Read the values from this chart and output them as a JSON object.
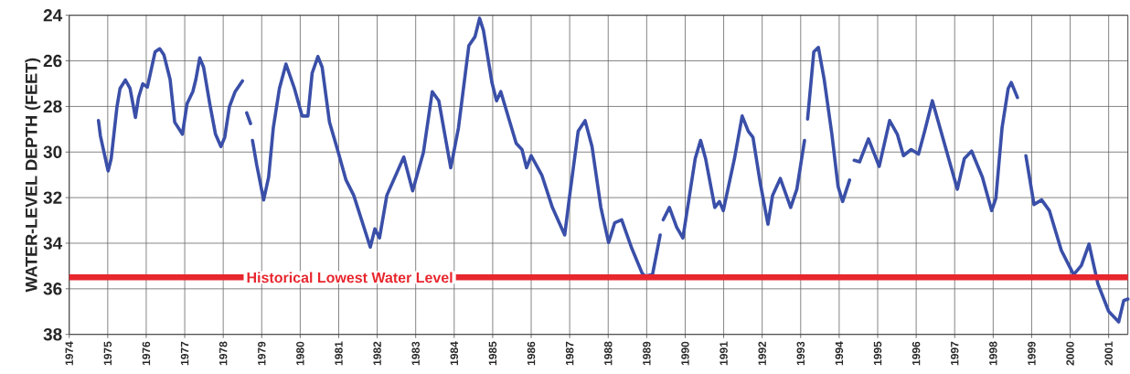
{
  "chart_data": {
    "type": "line",
    "ylabel": "WATER-LEVEL DEPTH (FEET)",
    "xlim": [
      1974,
      2001.5
    ],
    "ylim": [
      38,
      24
    ],
    "xticks": [
      1974,
      1975,
      1976,
      1977,
      1978,
      1979,
      1980,
      1981,
      1982,
      1983,
      1984,
      1985,
      1986,
      1987,
      1988,
      1989,
      1990,
      1991,
      1992,
      1993,
      1994,
      1995,
      1996,
      1997,
      1998,
      1999,
      2000,
      2001
    ],
    "yticks": [
      24,
      26,
      28,
      30,
      32,
      34,
      36,
      38
    ],
    "grid": true,
    "marker": "none",
    "line_style": "solid",
    "ref_lines": [
      {
        "axis": "y",
        "value": 35.5,
        "label": "Historical Lowest Water Level",
        "color": "#e8262e"
      }
    ],
    "series": [
      {
        "color": "#3a4fa8",
        "x": [
          1974.76,
          1974.81,
          1975.01,
          1975.09,
          1975.24,
          1975.32,
          1975.46,
          1975.58,
          1975.72,
          1975.8,
          1975.91,
          1976.03,
          1976.23,
          1976.35,
          1976.46,
          1976.62,
          1976.74,
          1976.94,
          1977.06,
          1977.21,
          1977.29,
          1977.39,
          1977.49,
          1977.65,
          1977.8,
          1977.94,
          1978.04,
          1978.16,
          1978.31,
          1978.5,
          1978.55,
          1978.61,
          1978.71,
          1978.735,
          1978.76,
          1978.87,
          1979.05,
          1979.18,
          1979.3,
          1979.46,
          1979.63,
          1979.85,
          1980.05,
          1980.2,
          1980.31,
          1980.46,
          1980.57,
          1980.76,
          1980.99,
          1981.19,
          1981.39,
          1981.82,
          1981.94,
          1982.06,
          1982.25,
          1982.69,
          1982.92,
          1983.2,
          1983.43,
          1983.6,
          1983.91,
          1984.11,
          1984.38,
          1984.54,
          1984.66,
          1984.76,
          1984.98,
          1985.1,
          1985.21,
          1985.61,
          1985.76,
          1985.88,
          1986.0,
          1986.28,
          1986.55,
          1986.87,
          1986.99,
          1987.22,
          1987.4,
          1987.58,
          1987.81,
          1988.01,
          1988.17,
          1988.35,
          1988.6,
          1988.88,
          1988.96,
          1989.15,
          1989.35,
          1989.39,
          1989.43,
          1989.59,
          1989.78,
          1989.94,
          1990.26,
          1990.4,
          1990.53,
          1990.77,
          1990.89,
          1990.99,
          1991.28,
          1991.48,
          1991.64,
          1991.76,
          1991.95,
          1992.15,
          1992.27,
          1992.47,
          1992.74,
          1992.9,
          1993.1,
          1993.14,
          1993.18,
          1993.34,
          1993.46,
          1993.61,
          1993.81,
          1993.97,
          1994.09,
          1994.27,
          1994.33,
          1994.39,
          1994.53,
          1994.76,
          1995.04,
          1995.31,
          1995.51,
          1995.67,
          1995.87,
          1996.06,
          1996.22,
          1996.42,
          1996.62,
          1996.89,
          1997.07,
          1997.25,
          1997.44,
          1997.72,
          1997.96,
          1998.07,
          1998.23,
          1998.39,
          1998.47,
          1998.63,
          1998.74,
          1998.85,
          1999.06,
          1999.26,
          1999.46,
          1999.77,
          2000.09,
          2000.29,
          2000.49,
          2000.72,
          2001.0,
          2001.26,
          2001.39,
          2001.5
        ],
        "values": [
          28.62,
          29.29,
          30.83,
          30.29,
          28.02,
          27.21,
          26.84,
          27.21,
          28.48,
          27.61,
          27.01,
          27.15,
          25.61,
          25.47,
          25.74,
          26.81,
          28.69,
          29.22,
          27.88,
          27.35,
          26.81,
          25.87,
          26.28,
          27.88,
          29.22,
          29.76,
          29.35,
          28.02,
          27.35,
          26.88,
          null,
          28.28,
          28.75,
          null,
          29.49,
          30.56,
          32.1,
          31.1,
          28.95,
          27.21,
          26.14,
          27.21,
          28.42,
          28.42,
          26.54,
          25.81,
          26.28,
          28.69,
          30.02,
          31.23,
          31.9,
          34.17,
          33.37,
          33.77,
          31.9,
          30.22,
          31.7,
          30.02,
          27.35,
          27.75,
          30.69,
          28.95,
          25.34,
          24.94,
          24.13,
          24.67,
          26.95,
          27.75,
          27.35,
          29.62,
          29.89,
          30.69,
          30.16,
          31.03,
          32.43,
          33.64,
          32.03,
          29.09,
          28.62,
          29.76,
          32.43,
          33.97,
          33.1,
          32.97,
          34.17,
          35.31,
          35.45,
          35.38,
          33.64,
          null,
          32.97,
          32.43,
          33.3,
          33.77,
          30.29,
          29.49,
          30.29,
          32.43,
          32.17,
          32.57,
          30.29,
          28.42,
          29.09,
          29.35,
          31.36,
          33.17,
          31.9,
          31.16,
          32.43,
          31.63,
          29.49,
          null,
          28.55,
          25.61,
          25.41,
          26.81,
          29.22,
          31.5,
          32.17,
          31.23,
          null,
          30.36,
          30.43,
          29.42,
          30.63,
          28.62,
          29.22,
          30.16,
          29.89,
          30.09,
          29.09,
          27.75,
          28.95,
          30.56,
          31.63,
          30.29,
          29.96,
          31.1,
          32.57,
          32.03,
          28.95,
          27.21,
          26.95,
          27.61,
          null,
          30.16,
          32.3,
          32.1,
          32.57,
          34.31,
          35.38,
          34.98,
          34.04,
          35.78,
          36.99,
          37.45,
          36.52,
          36.45
        ]
      }
    ]
  }
}
